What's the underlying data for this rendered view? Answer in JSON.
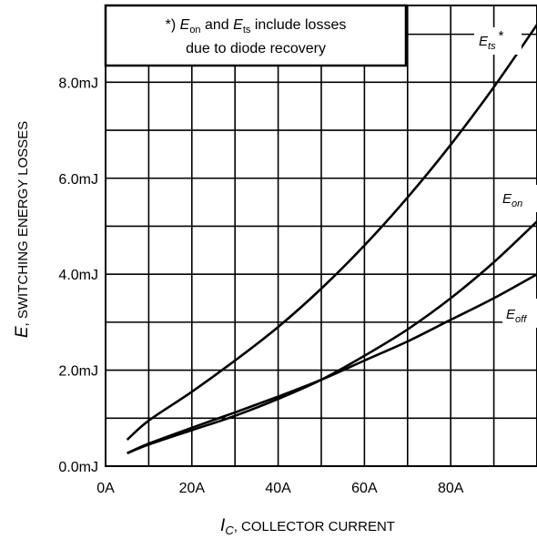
{
  "chart_data": {
    "type": "line",
    "xlabel": {
      "symbol": "I",
      "subscript": "C",
      "text": ", COLLECTOR CURRENT"
    },
    "ylabel": {
      "symbol": "E",
      "text": ", SWITCHING ENERGY LOSSES"
    },
    "x_ticks": [
      {
        "value": 0,
        "label": "0A"
      },
      {
        "value": 20,
        "label": "20A"
      },
      {
        "value": 40,
        "label": "40A"
      },
      {
        "value": 60,
        "label": "60A"
      },
      {
        "value": 80,
        "label": "80A"
      }
    ],
    "y_ticks": [
      {
        "value": 0,
        "label": "0.0mJ"
      },
      {
        "value": 2,
        "label": "2.0mJ"
      },
      {
        "value": 4,
        "label": "4.0mJ"
      },
      {
        "value": 6,
        "label": "6.0mJ"
      },
      {
        "value": 8,
        "label": "8.0mJ"
      }
    ],
    "xlim": [
      0,
      100
    ],
    "ylim": [
      0,
      9.6
    ],
    "grid": true,
    "note": {
      "prefix": "*) ",
      "sym1": "E",
      "sub1": "on",
      "mid": " and ",
      "sym2": "E",
      "sub2": "ts",
      "suffix": " include losses",
      "line2": "due to diode recovery"
    },
    "series": [
      {
        "name": "Ets",
        "label_symbol": "E",
        "label_sub": "ts",
        "label_suffix": "*",
        "x": [
          5,
          10,
          20,
          30,
          40,
          50,
          60,
          70,
          80,
          90,
          100
        ],
        "y": [
          0.55,
          0.95,
          1.55,
          2.2,
          2.9,
          3.7,
          4.6,
          5.6,
          6.7,
          7.9,
          9.2
        ]
      },
      {
        "name": "Eon",
        "label_symbol": "E",
        "label_sub": "on",
        "label_suffix": "",
        "x": [
          5,
          10,
          20,
          30,
          40,
          50,
          60,
          70,
          80,
          90,
          100
        ],
        "y": [
          0.27,
          0.45,
          0.75,
          1.05,
          1.4,
          1.8,
          2.3,
          2.85,
          3.5,
          4.25,
          5.1
        ]
      },
      {
        "name": "Eoff",
        "label_symbol": "E",
        "label_sub": "off",
        "label_suffix": "",
        "x": [
          5,
          10,
          20,
          30,
          40,
          50,
          60,
          70,
          80,
          90,
          100
        ],
        "y": [
          0.27,
          0.47,
          0.8,
          1.12,
          1.45,
          1.8,
          2.2,
          2.6,
          3.05,
          3.5,
          4.0
        ]
      }
    ]
  }
}
